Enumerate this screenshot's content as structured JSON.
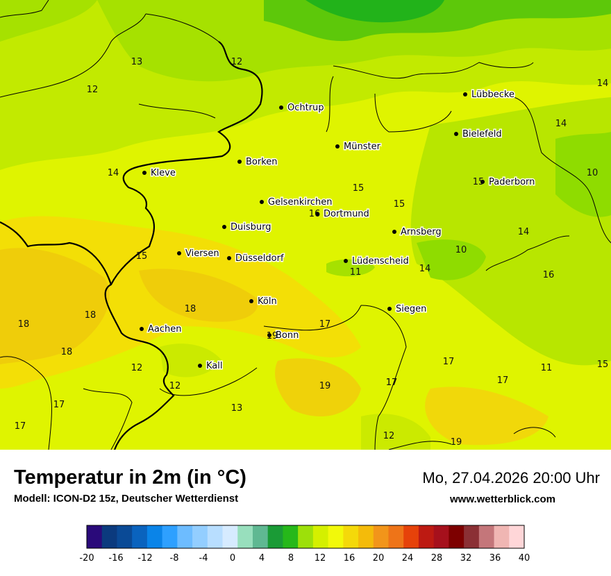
{
  "header": {
    "title": "Temperatur in 2m (in °C)",
    "model": "Modell: ICON-D2 15z, Deutscher Wetterdienst",
    "datetime": "Mo, 27.04.2026 20:00 Uhr",
    "website": "www.wetterblick.com"
  },
  "map": {
    "cities": [
      {
        "name": "Lübbecke"
      },
      {
        "name": "Ochtrup"
      },
      {
        "name": "Bielefeld"
      },
      {
        "name": "Münster"
      },
      {
        "name": "Borken"
      },
      {
        "name": "Kleve"
      },
      {
        "name": "Paderborn"
      },
      {
        "name": "Gelsenkirchen"
      },
      {
        "name": "Dortmund"
      },
      {
        "name": "Duisburg"
      },
      {
        "name": "Arnsberg"
      },
      {
        "name": "Viersen"
      },
      {
        "name": "Düsseldorf"
      },
      {
        "name": "Lüdenscheid"
      },
      {
        "name": "Köln"
      },
      {
        "name": "Siegen"
      },
      {
        "name": "Aachen"
      },
      {
        "name": "Bonn"
      },
      {
        "name": "Kall"
      }
    ],
    "values": [
      "13",
      "12",
      "12",
      "14",
      "14",
      "14",
      "10",
      "15",
      "15",
      "15",
      "16",
      "14",
      "10",
      "15",
      "11",
      "14",
      "16",
      "18",
      "18",
      "18",
      "17",
      "18",
      "17",
      "19",
      "17",
      "17",
      "11",
      "15",
      "12",
      "12",
      "17",
      "19",
      "13",
      "17",
      "17",
      "12",
      "19"
    ]
  },
  "legend": {
    "ticks": [
      "-20",
      "-16",
      "-12",
      "-8",
      "-4",
      "0",
      "4",
      "8",
      "12",
      "16",
      "20",
      "24",
      "28",
      "32",
      "36",
      "40"
    ],
    "colors": [
      "#2a0a7a",
      "#0b3a7e",
      "#0a4a96",
      "#0a63be",
      "#0a84e8",
      "#2ea0ff",
      "#6dbcff",
      "#93ceff",
      "#b8deff",
      "#d6ebff",
      "#98dfbd",
      "#5fb892",
      "#1a9b36",
      "#26b81a",
      "#9de00a",
      "#d4f000",
      "#f2f90a",
      "#f4d90a",
      "#f4bb0a",
      "#f2951a",
      "#ee7418",
      "#e6420a",
      "#bd1a12",
      "#a6101c",
      "#7d0000",
      "#8b3035",
      "#c4767a",
      "#f0b6b3",
      "#ffd6d8"
    ]
  },
  "colors": {
    "warm": "#f1d80a",
    "yellow": "#eef800",
    "lime": "#cbea00",
    "green": "#9ee000",
    "deepgreen": "#28b81a"
  }
}
